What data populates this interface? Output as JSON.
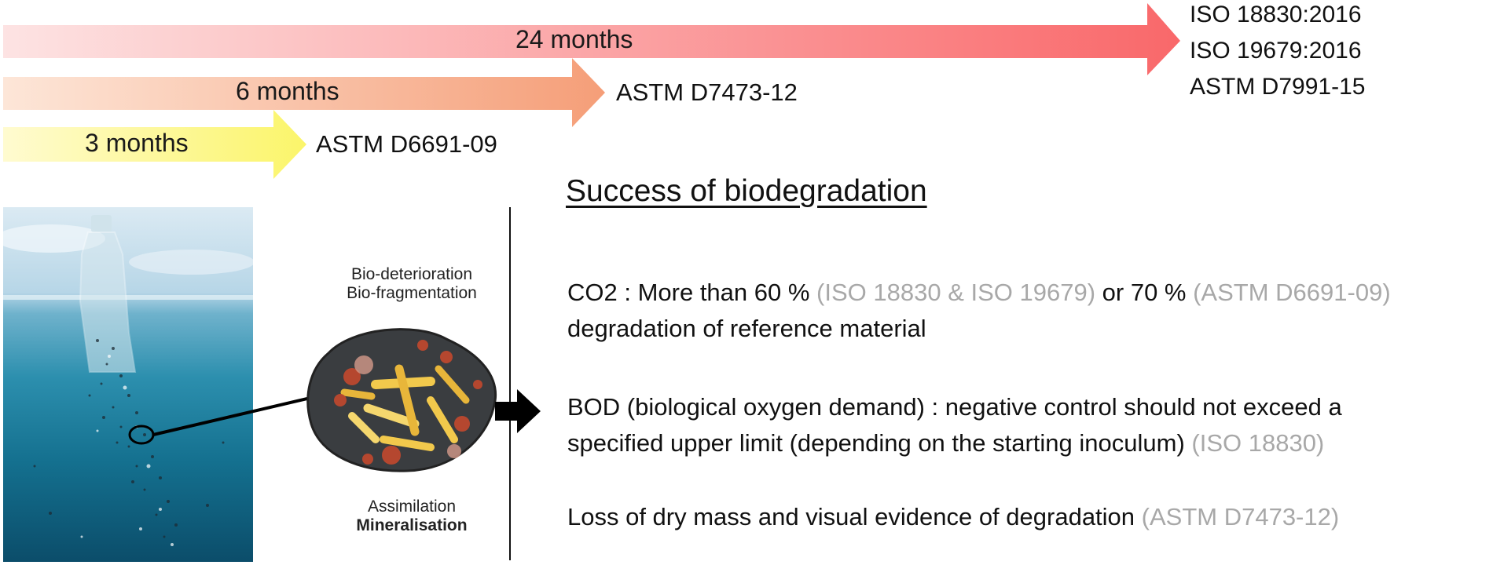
{
  "timeline": {
    "arrows": [
      {
        "duration": "24 months",
        "color_start": "#fde3e3",
        "color_end": "#f9686a"
      },
      {
        "duration": "6 months",
        "color_start": "#fde6d8",
        "color_end": "#f59e78"
      },
      {
        "duration": "3 months",
        "color_start": "#fffbd0",
        "color_end": "#fbf56a"
      }
    ],
    "standards_24": [
      "ISO 18830:2016",
      "ISO 19679:2016",
      "ASTM D7991-15"
    ],
    "standard_6": "ASTM D7473-12",
    "standard_3": "ASTM D6691-09"
  },
  "diagram": {
    "top_caption_1": "Bio-deterioration",
    "top_caption_2": "Bio-fragmentation",
    "bottom_caption_1": "Assimilation",
    "bottom_caption_2": "Mineralisation",
    "icons": [
      "plastic-bottle-ocean-photo",
      "microbe-particle-icon",
      "arrow-right-icon"
    ]
  },
  "criteria": {
    "heading": "Success of biodegradation",
    "co2": {
      "part1": "CO2 : More than 60 % ",
      "ref1": "(ISO 18830 & ISO 19679)",
      "part2": " or 70 % ",
      "ref2": "(ASTM D6691-09)",
      "line2": "degradation of reference material"
    },
    "bod": {
      "line1": "BOD (biological oxygen demand) : negative control should not exceed a",
      "line2": "specified upper limit (depending on the starting inoculum) ",
      "ref": "(ISO 18830)"
    },
    "mass": {
      "text": "Loss of dry mass and visual evidence of degradation ",
      "ref": "(ASTM D7473-12)"
    }
  }
}
